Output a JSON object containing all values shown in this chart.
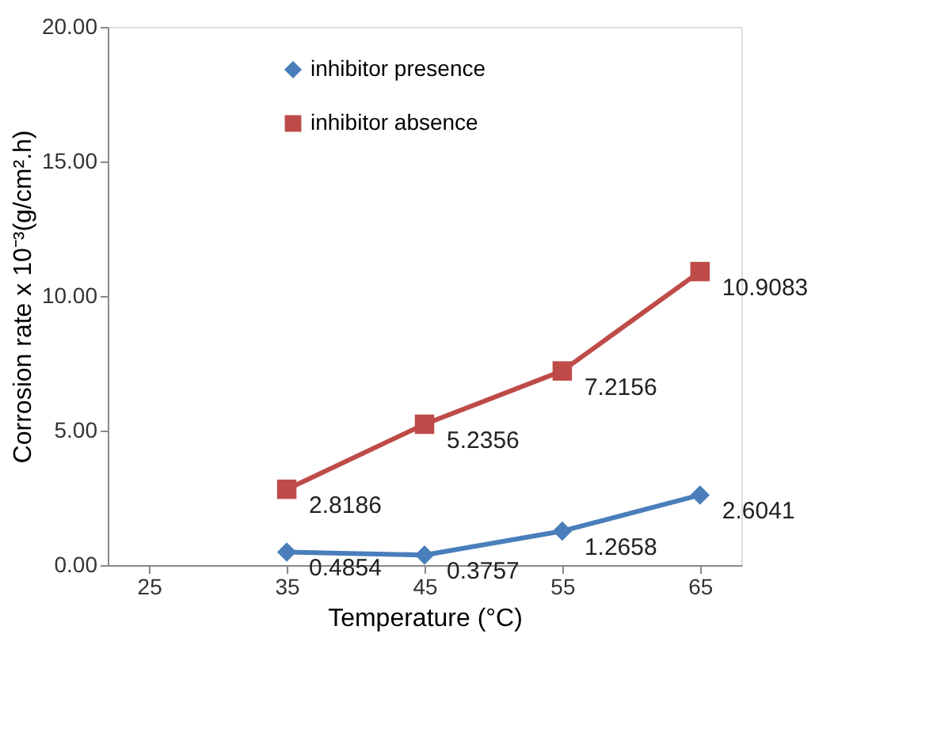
{
  "chart_data": {
    "type": "line",
    "xlabel": "Temperature (°C)",
    "ylabel": "Corrosion rate x 10⁻³(g/cm².h)",
    "categories": [
      "25",
      "35",
      "45",
      "55",
      "65"
    ],
    "series": [
      {
        "name": "inhibitor presence",
        "color": "#4a7ebb",
        "marker": "diamond",
        "values": [
          null,
          0.4854,
          0.3757,
          1.2658,
          2.6041
        ]
      },
      {
        "name": "inhibitor absence",
        "color": "#be4b48",
        "marker": "square",
        "values": [
          null,
          2.8186,
          5.2356,
          7.2156,
          10.9083
        ]
      }
    ],
    "ylim": [
      0,
      20
    ],
    "yticks": [
      {
        "value": 0,
        "label": "0.00"
      },
      {
        "value": 5,
        "label": "5.00"
      },
      {
        "value": 10,
        "label": "10.00"
      },
      {
        "value": 15,
        "label": "15.00"
      },
      {
        "value": 20,
        "label": "20.00"
      }
    ],
    "grid": false,
    "legend": "top left",
    "data_labels": true,
    "line_style": "solid"
  }
}
